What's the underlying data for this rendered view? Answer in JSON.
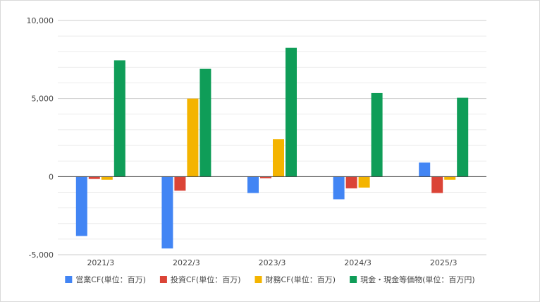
{
  "chart_data": {
    "type": "bar",
    "categories": [
      "2021/3",
      "2022/3",
      "2023/3",
      "2024/3",
      "2025/3"
    ],
    "series": [
      {
        "name": "営業CF(単位：百万)",
        "color": "#4285f4",
        "values": [
          -3800,
          -4600,
          -1050,
          -1450,
          900
        ]
      },
      {
        "name": "投資CF(単位：百万)",
        "color": "#db4437",
        "values": [
          -150,
          -900,
          -100,
          -750,
          -1050
        ]
      },
      {
        "name": "財務CF(単位：百万)",
        "color": "#f4b400",
        "values": [
          -200,
          5000,
          2400,
          -700,
          -200
        ]
      },
      {
        "name": "現金・現金等価物(単位：百万円)",
        "color": "#0f9d58",
        "values": [
          7450,
          6900,
          8250,
          5350,
          5050
        ]
      }
    ],
    "y_ticks": [
      "10,000",
      "5,000",
      "0",
      "-5,000"
    ],
    "ylim": [
      -5000,
      10000
    ],
    "grid": true,
    "legend_position": "bottom"
  }
}
